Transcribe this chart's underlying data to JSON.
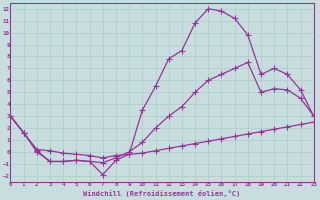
{
  "xlabel": "Windchill (Refroidissement éolien,°C)",
  "ylabel": "",
  "bg_color": "#c8dede",
  "line_color": "#993399",
  "grid_color": "#aacccc",
  "xlim": [
    0,
    23
  ],
  "ylim": [
    -2.5,
    12.5
  ],
  "xticks": [
    0,
    1,
    2,
    3,
    4,
    5,
    6,
    7,
    8,
    9,
    10,
    11,
    12,
    13,
    14,
    15,
    16,
    17,
    18,
    19,
    20,
    21,
    22,
    23
  ],
  "yticks": [
    -2,
    -1,
    0,
    1,
    2,
    3,
    4,
    5,
    6,
    7,
    8,
    9,
    10,
    11,
    12
  ],
  "line1_x": [
    0,
    1,
    2,
    3,
    4,
    5,
    6,
    7,
    8,
    9,
    10,
    11,
    12,
    13,
    14,
    15,
    16,
    17,
    18,
    19,
    20,
    21,
    22,
    23
  ],
  "line1_y": [
    3.0,
    1.6,
    0.2,
    0.1,
    -0.1,
    -0.2,
    -0.3,
    -0.5,
    -0.3,
    -0.2,
    -0.1,
    0.1,
    0.3,
    0.5,
    0.7,
    0.9,
    1.1,
    1.3,
    1.5,
    1.7,
    1.9,
    2.1,
    2.3,
    2.5
  ],
  "line2_x": [
    0,
    1,
    2,
    3,
    4,
    5,
    6,
    7,
    8,
    9,
    10,
    11,
    12,
    13,
    14,
    15,
    16,
    17,
    18,
    19,
    20,
    21,
    22,
    23
  ],
  "line2_y": [
    3.0,
    1.6,
    0.1,
    -0.8,
    -0.8,
    -0.7,
    -0.8,
    -1.9,
    -0.7,
    -0.2,
    3.5,
    5.5,
    7.8,
    8.5,
    10.8,
    12.0,
    11.8,
    11.2,
    9.8,
    6.5,
    7.0,
    6.5,
    5.2,
    3.0
  ],
  "line3_x": [
    0,
    1,
    2,
    3,
    4,
    5,
    6,
    7,
    8,
    9,
    10,
    11,
    12,
    13,
    14,
    15,
    16,
    17,
    18,
    19,
    20,
    21,
    22,
    23
  ],
  "line3_y": [
    3.0,
    1.6,
    0.0,
    -0.8,
    -0.8,
    -0.7,
    -0.8,
    -0.9,
    -0.5,
    0.0,
    0.8,
    2.0,
    3.0,
    3.8,
    5.0,
    6.0,
    6.5,
    7.0,
    7.5,
    5.0,
    5.3,
    5.2,
    4.5,
    3.0
  ],
  "marker": "+",
  "markersize": 4,
  "linewidth": 0.9
}
